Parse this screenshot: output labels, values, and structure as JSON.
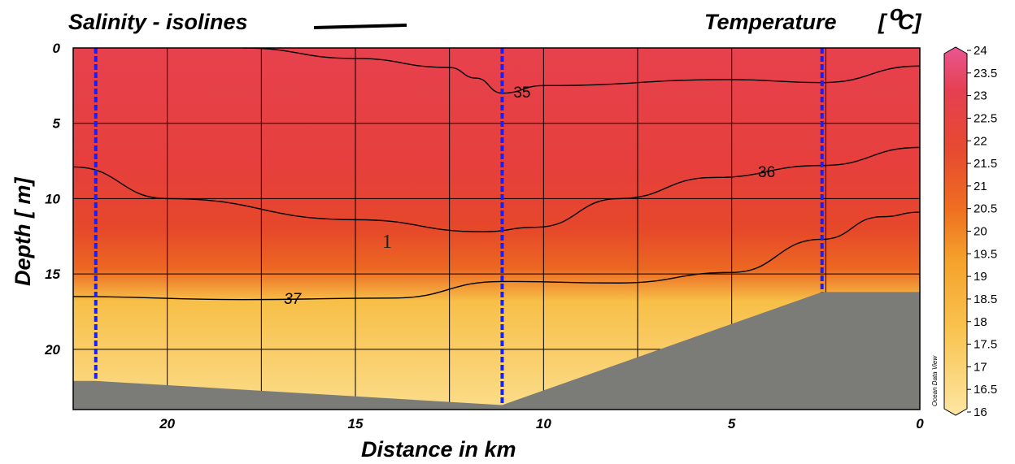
{
  "chart_data": {
    "type": "heatmap",
    "title_left": "Salinity - isolines",
    "title_right": "Temperature",
    "title_right_unit_open": "[",
    "title_right_unit_deg": "o",
    "title_right_unit_c": "C]",
    "xlabel": "Distance in km",
    "ylabel": "Depth  [ m]",
    "xlim": [
      22.5,
      0
    ],
    "ylim": [
      0,
      24
    ],
    "grid": true,
    "x_ticks": [
      20,
      15,
      10,
      5,
      0
    ],
    "y_ticks": [
      0,
      5,
      10,
      15,
      20
    ],
    "colorbar": {
      "min": 16,
      "max": 24,
      "step": 0.5,
      "tick_labels": [
        "24",
        "23.5",
        "23",
        "22.5",
        "22",
        "21.5",
        "21",
        "20.5",
        "20",
        "19.5",
        "19",
        "18.5",
        "18",
        "17.5",
        "17",
        "16.5",
        "16"
      ],
      "colors": [
        "#fde6a2",
        "#f9c24d",
        "#f5a22c",
        "#ef6f20",
        "#e84a2d",
        "#e53f4c",
        "#ea5690"
      ]
    },
    "watermark": "Ocean Data View",
    "annotation": "1",
    "stations": [
      {
        "distance_km": 21.9,
        "max_depth_m": 22.1
      },
      {
        "distance_km": 11.1,
        "max_depth_m": 23.7
      },
      {
        "distance_km": 2.6,
        "max_depth_m": 16.2
      }
    ],
    "bottom_topography": [
      {
        "x": 22.5,
        "depth": 22.1
      },
      {
        "x": 21.9,
        "depth": 22.1
      },
      {
        "x": 11.1,
        "depth": 23.7
      },
      {
        "x": 2.6,
        "depth": 16.2
      },
      {
        "x": 0,
        "depth": 16.2
      }
    ],
    "isolines": [
      {
        "label": "35",
        "label_at": {
          "x": 10.8,
          "depth": 2.9
        },
        "points": [
          [
            18,
            0
          ],
          [
            15,
            0.7
          ],
          [
            12.5,
            1.3
          ],
          [
            11.8,
            2.0
          ],
          [
            11.1,
            3.0
          ],
          [
            10.0,
            2.5
          ],
          [
            5,
            2.1
          ],
          [
            2.6,
            2.3
          ],
          [
            0,
            1.2
          ]
        ]
      },
      {
        "label": "36",
        "label_at": {
          "x": 4.3,
          "depth": 8.2
        },
        "points": [
          [
            22.5,
            7.9
          ],
          [
            20,
            10.0
          ],
          [
            15,
            11.4
          ],
          [
            11.6,
            12.2
          ],
          [
            10.2,
            11.9
          ],
          [
            8,
            10.0
          ],
          [
            5.5,
            8.6
          ],
          [
            2.6,
            7.8
          ],
          [
            0,
            6.6
          ]
        ]
      },
      {
        "label": "37",
        "label_at": {
          "x": 16.9,
          "depth": 16.6
        },
        "points": [
          [
            22.5,
            16.5
          ],
          [
            18,
            16.7
          ],
          [
            14,
            16.6
          ],
          [
            11.1,
            15.5
          ],
          [
            8,
            15.6
          ],
          [
            5,
            14.9
          ],
          [
            2.6,
            12.7
          ],
          [
            1,
            11.2
          ],
          [
            0,
            10.9
          ]
        ]
      }
    ],
    "temperature_surface": [
      {
        "depth": 0,
        "temp": 23.3
      },
      {
        "depth": 8,
        "temp": 22.6
      },
      {
        "depth": 12,
        "temp": 22.0
      },
      {
        "depth": 14.5,
        "temp": 21.0
      },
      {
        "depth": 16.5,
        "temp": 18.5
      },
      {
        "depth": 20,
        "temp": 17.5
      },
      {
        "depth": 24,
        "temp": 16.5
      }
    ]
  }
}
